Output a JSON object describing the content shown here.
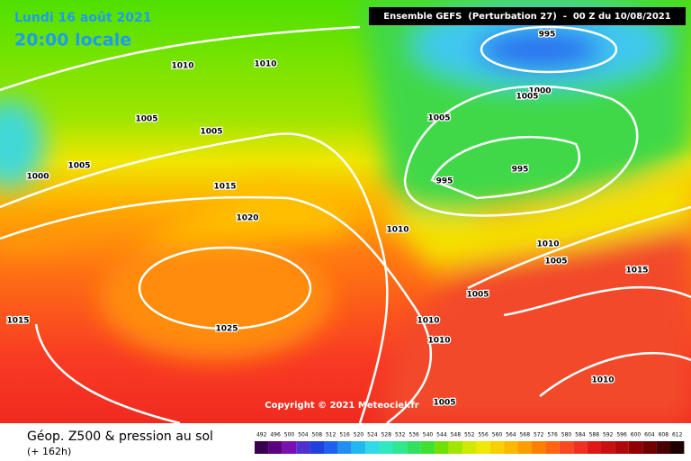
{
  "header": {
    "date": "Lundi 16 août 2021",
    "time": "20:00 locale",
    "model": "Ensemble GEFS  (Perturbation 27)  -  00 Z du 10/08/2021"
  },
  "map": {
    "copyright": "Copyright © 2021 Meteociel.fr",
    "isobar_labels": [
      "1010",
      "1010",
      "1005",
      "1005",
      "1005",
      "1000",
      "1015",
      "1020",
      "1025",
      "1015",
      "995",
      "1000",
      "1005",
      "1005",
      "995",
      "995",
      "1010",
      "1010",
      "1005",
      "1015",
      "1005",
      "1010",
      "1010",
      "1005",
      "1010"
    ]
  },
  "footer": {
    "title": "Géop. Z500 & pression au sol",
    "lead": "(+ 162h)",
    "scale": [
      "492",
      "496",
      "500",
      "504",
      "508",
      "512",
      "516",
      "520",
      "524",
      "528",
      "532",
      "536",
      "540",
      "544",
      "548",
      "552",
      "556",
      "560",
      "564",
      "568",
      "572",
      "576",
      "580",
      "584",
      "588",
      "592",
      "596",
      "600",
      "604",
      "608",
      "612"
    ]
  }
}
